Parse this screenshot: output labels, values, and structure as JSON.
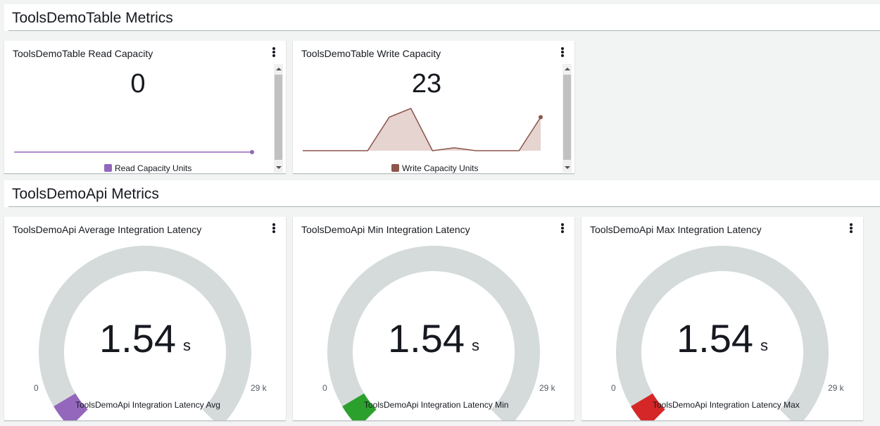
{
  "sections": [
    {
      "title": "ToolsDemoTable Metrics"
    },
    {
      "title": "ToolsDemoApi Metrics"
    }
  ],
  "table_widgets": [
    {
      "title": "ToolsDemoTable Read Capacity",
      "value": "0",
      "legend": "Read Capacity Units",
      "color": "#9467bd",
      "chart_data": {
        "type": "area",
        "series": [
          {
            "name": "Read Capacity Units",
            "values": [
              0,
              0,
              0,
              0,
              0,
              0,
              0,
              0,
              0,
              0,
              0,
              0
            ]
          }
        ]
      }
    },
    {
      "title": "ToolsDemoTable Write Capacity",
      "value": "23",
      "legend": "Write Capacity Units",
      "color": "#8c564b",
      "chart_data": {
        "type": "area",
        "series": [
          {
            "name": "Write Capacity Units",
            "values": [
              0,
              0,
              0,
              0,
              23,
              29,
              0,
              2,
              0,
              0,
              0,
              23
            ]
          }
        ]
      }
    }
  ],
  "gauges": [
    {
      "title": "ToolsDemoApi Average Integration Latency",
      "value": "1.54",
      "unit": "s",
      "min": "0",
      "max": "29 k",
      "legend": "ToolsDemoApi Integration Latency Avg",
      "color": "#9467bd",
      "fraction": 0.053
    },
    {
      "title": "ToolsDemoApi Min Integration Latency",
      "value": "1.54",
      "unit": "s",
      "min": "0",
      "max": "29 k",
      "legend": "ToolsDemoApi Integration Latency Min",
      "color": "#2ca02c",
      "fraction": 0.053
    },
    {
      "title": "ToolsDemoApi Max Integration Latency",
      "value": "1.54",
      "unit": "s",
      "min": "0",
      "max": "29 k",
      "legend": "ToolsDemoApi Integration Latency Max",
      "color": "#d62728",
      "fraction": 0.053
    }
  ],
  "icons": {
    "widget_menu": "more-vertical-icon"
  }
}
